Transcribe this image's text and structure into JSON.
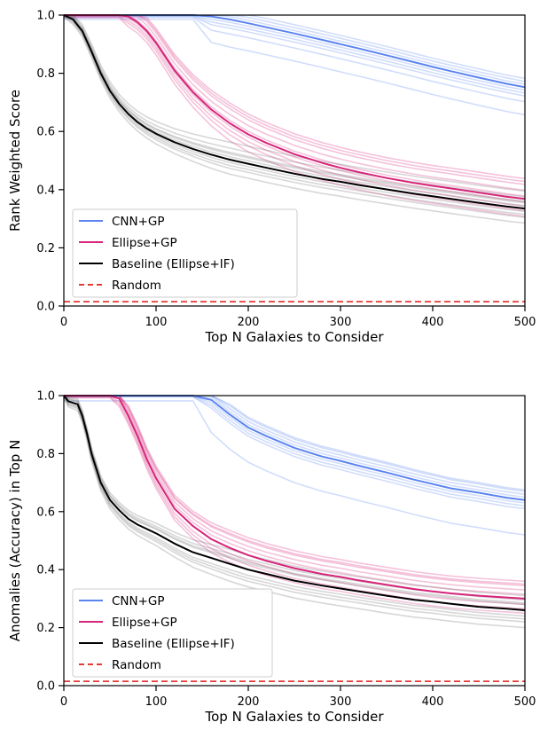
{
  "chart_data": [
    {
      "type": "line",
      "xlabel": "Top N Galaxies to Consider",
      "ylabel": "Rank Weighted Score",
      "xlim": [
        0,
        500
      ],
      "ylim": [
        0,
        1
      ],
      "xticks": [
        0,
        100,
        200,
        300,
        400,
        500
      ],
      "yticks": [
        0.0,
        0.2,
        0.4,
        0.6,
        0.8,
        1.0
      ],
      "xtick_labels": [
        "0",
        "100",
        "200",
        "300",
        "400",
        "500"
      ],
      "ytick_labels": [
        "0.0",
        "0.2",
        "0.4",
        "0.6",
        "0.8",
        "1.0"
      ],
      "grid": false,
      "legend_position": "bottom-left",
      "x": [
        0,
        10,
        20,
        30,
        40,
        50,
        60,
        70,
        80,
        90,
        100,
        120,
        140,
        160,
        180,
        200,
        220,
        250,
        280,
        300,
        320,
        350,
        380,
        400,
        420,
        450,
        480,
        500
      ],
      "series": [
        {
          "name": "CNN+GP",
          "color": "#5b84f0",
          "style": "solid",
          "values": [
            1.0,
            1.0,
            1.0,
            1.0,
            1.0,
            1.0,
            1.0,
            1.0,
            1.0,
            1.0,
            1.0,
            1.0,
            1.0,
            0.995,
            0.985,
            0.972,
            0.958,
            0.937,
            0.915,
            0.9,
            0.885,
            0.862,
            0.838,
            0.822,
            0.807,
            0.785,
            0.764,
            0.752
          ]
        },
        {
          "name": "Ellipse+GP",
          "color": "#d6257a",
          "style": "solid",
          "values": [
            1.0,
            1.0,
            1.0,
            1.0,
            1.0,
            1.0,
            1.0,
            0.995,
            0.975,
            0.945,
            0.905,
            0.81,
            0.735,
            0.675,
            0.628,
            0.59,
            0.56,
            0.522,
            0.492,
            0.475,
            0.46,
            0.44,
            0.423,
            0.413,
            0.404,
            0.39,
            0.376,
            0.368
          ]
        },
        {
          "name": "Baseline (Ellipse+IF)",
          "color": "#000000",
          "style": "solid",
          "values": [
            1.0,
            0.985,
            0.945,
            0.875,
            0.8,
            0.74,
            0.695,
            0.66,
            0.632,
            0.61,
            0.592,
            0.563,
            0.54,
            0.52,
            0.503,
            0.489,
            0.475,
            0.455,
            0.437,
            0.427,
            0.416,
            0.401,
            0.386,
            0.377,
            0.368,
            0.355,
            0.342,
            0.335
          ]
        },
        {
          "name": "Random",
          "color": "#e53935",
          "style": "dashed",
          "values": [
            0.015,
            0.015,
            0.015,
            0.015,
            0.015,
            0.015,
            0.015,
            0.015,
            0.015,
            0.015,
            0.015,
            0.015,
            0.015,
            0.015,
            0.015,
            0.015,
            0.015,
            0.015,
            0.015,
            0.015,
            0.015,
            0.015,
            0.015,
            0.015,
            0.015,
            0.015,
            0.015,
            0.015
          ]
        }
      ],
      "trials": [
        {
          "color": "#5b84f0",
          "offsets": [
            0.03,
            0.02,
            0.01,
            0.0,
            -0.01,
            -0.02,
            -0.03,
            -0.05,
            -0.095
          ]
        },
        {
          "color": "#d6257a",
          "offsets": [
            0.07,
            0.05,
            0.03,
            0.01,
            -0.01,
            -0.025,
            -0.04,
            -0.06,
            0.06
          ]
        },
        {
          "color": "#707070",
          "offsets": [
            -0.05,
            -0.03,
            -0.01,
            0.01,
            0.025,
            0.04,
            0.06,
            -0.02,
            0.02
          ]
        }
      ]
    },
    {
      "type": "line",
      "xlabel": "Top N Galaxies to Consider",
      "ylabel": "Anomalies (Accuracy) in Top N",
      "xlim": [
        0,
        500
      ],
      "ylim": [
        0,
        1
      ],
      "xticks": [
        0,
        100,
        200,
        300,
        400,
        500
      ],
      "yticks": [
        0.0,
        0.2,
        0.4,
        0.6,
        0.8,
        1.0
      ],
      "xtick_labels": [
        "0",
        "100",
        "200",
        "300",
        "400",
        "500"
      ],
      "ytick_labels": [
        "0.0",
        "0.2",
        "0.4",
        "0.6",
        "0.8",
        "1.0"
      ],
      "grid": false,
      "legend_position": "bottom-left",
      "x": [
        0,
        5,
        10,
        15,
        20,
        25,
        30,
        40,
        50,
        60,
        70,
        80,
        90,
        100,
        120,
        140,
        160,
        180,
        200,
        220,
        250,
        280,
        300,
        320,
        350,
        380,
        400,
        420,
        450,
        480,
        500
      ],
      "series": [
        {
          "name": "CNN+GP",
          "color": "#5b84f0",
          "style": "solid",
          "values": [
            1.0,
            1.0,
            1.0,
            1.0,
            1.0,
            1.0,
            1.0,
            1.0,
            1.0,
            1.0,
            1.0,
            1.0,
            1.0,
            1.0,
            1.0,
            1.0,
            0.985,
            0.935,
            0.89,
            0.86,
            0.82,
            0.79,
            0.775,
            0.758,
            0.735,
            0.71,
            0.695,
            0.68,
            0.665,
            0.648,
            0.64
          ]
        },
        {
          "name": "Ellipse+GP",
          "color": "#d6257a",
          "style": "solid",
          "values": [
            1.0,
            1.0,
            1.0,
            1.0,
            1.0,
            1.0,
            1.0,
            1.0,
            1.0,
            0.99,
            0.93,
            0.86,
            0.78,
            0.715,
            0.61,
            0.55,
            0.505,
            0.475,
            0.45,
            0.43,
            0.405,
            0.385,
            0.375,
            0.363,
            0.348,
            0.333,
            0.325,
            0.318,
            0.31,
            0.304,
            0.3
          ]
        },
        {
          "name": "Baseline (Ellipse+IF)",
          "color": "#000000",
          "style": "solid",
          "values": [
            1.0,
            0.98,
            0.975,
            0.97,
            0.93,
            0.87,
            0.8,
            0.7,
            0.64,
            0.605,
            0.575,
            0.555,
            0.54,
            0.525,
            0.49,
            0.46,
            0.44,
            0.42,
            0.4,
            0.385,
            0.362,
            0.345,
            0.335,
            0.325,
            0.31,
            0.296,
            0.29,
            0.282,
            0.272,
            0.265,
            0.26
          ]
        },
        {
          "name": "Random",
          "color": "#e53935",
          "style": "dashed",
          "values": [
            0.015,
            0.015,
            0.015,
            0.015,
            0.015,
            0.015,
            0.015,
            0.015,
            0.015,
            0.015,
            0.015,
            0.015,
            0.015,
            0.015,
            0.015,
            0.015,
            0.015,
            0.015,
            0.015,
            0.015,
            0.015,
            0.015,
            0.015,
            0.015,
            0.015,
            0.015,
            0.015,
            0.015,
            0.015,
            0.015,
            0.015
          ]
        }
      ],
      "trials": [
        {
          "color": "#5b84f0",
          "offsets": [
            0.03,
            0.02,
            0.01,
            0.0,
            -0.01,
            -0.02,
            -0.03,
            -0.12,
            0.035
          ]
        },
        {
          "color": "#d6257a",
          "offsets": [
            0.06,
            0.045,
            0.03,
            0.015,
            0.0,
            -0.02,
            -0.035,
            -0.05,
            0.05
          ]
        },
        {
          "color": "#707070",
          "offsets": [
            -0.06,
            -0.04,
            -0.02,
            0.0,
            0.02,
            0.035,
            0.05,
            -0.03,
            0.025
          ]
        }
      ]
    }
  ]
}
